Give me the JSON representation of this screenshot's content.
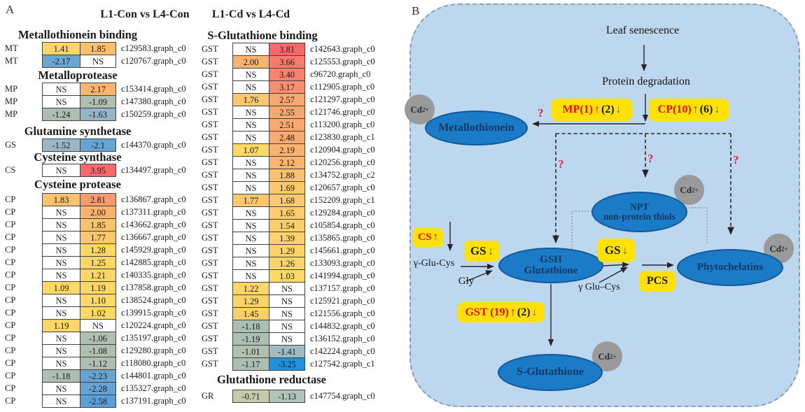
{
  "panel_a": {
    "label": "A",
    "headers": {
      "con": "L1-Con vs L4-Con",
      "cd": "L1-Cd vs L4-Cd"
    },
    "left_sections": [
      {
        "title": "Metallothionein binding",
        "rows": [
          {
            "g": "MT",
            "v1": "1.41",
            "b1": "#FCD666",
            "v2": "1.85",
            "b2": "#FAC06D",
            "id": "c129583.graph_c0"
          },
          {
            "g": "MT",
            "v1": "-2.17",
            "b1": "#6BA5D1",
            "v2": "NS",
            "b2": "#FFFFFF",
            "id": "c120767.graph_c0"
          }
        ]
      },
      {
        "title": "Metalloprotease",
        "rows": [
          {
            "g": "MP",
            "v1": "NS",
            "b1": "#FFFFFF",
            "v2": "2.17",
            "b2": "#FAB46E",
            "id": "c153414.graph_c0"
          },
          {
            "g": "MP",
            "v1": "NS",
            "b1": "#FFFFFF",
            "v2": "-1.09",
            "b2": "#AFBFB0",
            "id": "c147380.graph_c0"
          },
          {
            "g": "MP",
            "v1": "-1.24",
            "b1": "#ACBEB4",
            "v2": "-1.63",
            "b2": "#95B4C8",
            "id": "c150259.graph_c0"
          }
        ]
      },
      {
        "title": "Glutamine synthetase",
        "rows": [
          {
            "g": "GS",
            "v1": "-1.52",
            "b1": "#9BB7C6",
            "v2": "-2.1",
            "b2": "#68A4D2",
            "id": "c144370.graph_c0"
          }
        ]
      },
      {
        "title": "Cysteine synthase",
        "rows": [
          {
            "g": "CS",
            "v1": "NS",
            "b1": "#FFFFFF",
            "v2": "3.95",
            "b2": "#F8696B",
            "id": "c134497.graph_c0"
          }
        ]
      },
      {
        "title": "Cysteine protease",
        "rows": [
          {
            "g": "CP",
            "v1": "1.83",
            "b1": "#FBC36D",
            "v2": "2.81",
            "b2": "#F89C6F",
            "id": "c136867.graph_c0"
          },
          {
            "g": "CP",
            "v1": "NS",
            "b1": "#FFFFFF",
            "v2": "2.00",
            "b2": "#FAB46E",
            "id": "c137311.graph_c0"
          },
          {
            "g": "CP",
            "v1": "NS",
            "b1": "#FFFFFF",
            "v2": "1.85",
            "b2": "#FBC36D",
            "id": "c143662.graph_c0"
          },
          {
            "g": "CP",
            "v1": "NS",
            "b1": "#FFFFFF",
            "v2": "1.77",
            "b2": "#FBC86D",
            "id": "c136667.graph_c0"
          },
          {
            "g": "CP",
            "v1": "NS",
            "b1": "#FFFFFF",
            "v2": "1.28",
            "b2": "#FCD666",
            "id": "c145929.graph_c0"
          },
          {
            "g": "CP",
            "v1": "NS",
            "b1": "#FFFFFF",
            "v2": "1.25",
            "b2": "#FCD666",
            "id": "c142885.graph_c0"
          },
          {
            "g": "CP",
            "v1": "NS",
            "b1": "#FFFFFF",
            "v2": "1.21",
            "b2": "#FCD666",
            "id": "c140335.graph_c0"
          },
          {
            "g": "CP",
            "v1": "1.09",
            "b1": "#FDD965",
            "v2": "1.19",
            "b2": "#FCD666",
            "id": "c137858.graph_c0"
          },
          {
            "g": "CP",
            "v1": "NS",
            "b1": "#FFFFFF",
            "v2": "1.10",
            "b2": "#FDD965",
            "id": "c138524.graph_c0"
          },
          {
            "g": "CP",
            "v1": "NS",
            "b1": "#FFFFFF",
            "v2": "1.02",
            "b2": "#FDD965",
            "id": "c139915.graph_c0"
          },
          {
            "g": "CP",
            "v1": "1.19",
            "b1": "#FCD666",
            "v2": "NS",
            "b2": "#FFFFFF",
            "id": "c120224.graph_c0"
          },
          {
            "g": "CP",
            "v1": "NS",
            "b1": "#FFFFFF",
            "v2": "-1.06",
            "b2": "#AFBFB0",
            "id": "c135197.graph_c0"
          },
          {
            "g": "CP",
            "v1": "NS",
            "b1": "#FFFFFF",
            "v2": "-1.08",
            "b2": "#AFBFB0",
            "id": "c129280.graph_c0"
          },
          {
            "g": "CP",
            "v1": "NS",
            "b1": "#FFFFFF",
            "v2": "-1.12",
            "b2": "#AEBFB1",
            "id": "c118080.graph_c0"
          },
          {
            "g": "CP",
            "v1": "-1.18",
            "b1": "#ADBEB2",
            "v2": "-2.23",
            "b2": "#68A4D2",
            "id": "c144801.graph_c0"
          },
          {
            "g": "CP",
            "v1": "NS",
            "b1": "#FFFFFF",
            "v2": "-2.28",
            "b2": "#66A3D3",
            "id": "c135327.graph_c0"
          },
          {
            "g": "CP",
            "v1": "NS",
            "b1": "#FFFFFF",
            "v2": "-2.58",
            "b2": "#5C9ED7",
            "id": "c137191.graph_c0"
          }
        ]
      }
    ],
    "right_sections": [
      {
        "title": "S-Glutathione binding",
        "rows": [
          {
            "g": "GST",
            "v1": "NS",
            "b1": "#FFFFFF",
            "v2": "3.81",
            "b2": "#F8696B",
            "id": "c142643.graph_c0"
          },
          {
            "g": "GST",
            "v1": "2.00",
            "b1": "#FAB46E",
            "v2": "3.66",
            "b2": "#F87B6D",
            "id": "c125553.graph_c0"
          },
          {
            "g": "GST",
            "v1": "NS",
            "b1": "#FFFFFF",
            "v2": "3.40",
            "b2": "#F8826E",
            "id": "c96720.graph_c0"
          },
          {
            "g": "GST",
            "v1": "NS",
            "b1": "#FFFFFF",
            "v2": "3.17",
            "b2": "#F88D70",
            "id": "c112905.graph_c0"
          },
          {
            "g": "GST",
            "v1": "1.76",
            "b1": "#FBC86D",
            "v2": "2.57",
            "b2": "#F9A771",
            "id": "c121297.graph_c0"
          },
          {
            "g": "GST",
            "v1": "NS",
            "b1": "#FFFFFF",
            "v2": "2.55",
            "b2": "#F9A771",
            "id": "c121746.graph_c0"
          },
          {
            "g": "GST",
            "v1": "NS",
            "b1": "#FFFFFF",
            "v2": "2.51",
            "b2": "#F9A871",
            "id": "c113200.graph_c0"
          },
          {
            "g": "GST",
            "v1": "NS",
            "b1": "#FFFFFF",
            "v2": "2.48",
            "b2": "#F9A971",
            "id": "c123830.graph_c1"
          },
          {
            "g": "GST",
            "v1": "1.07",
            "b1": "#FDD965",
            "v2": "2.19",
            "b2": "#FAB36F",
            "id": "c120904.graph_c0"
          },
          {
            "g": "GST",
            "v1": "NS",
            "b1": "#FFFFFF",
            "v2": "2.12",
            "b2": "#FAB46E",
            "id": "c120256.graph_c0"
          },
          {
            "g": "GST",
            "v1": "NS",
            "b1": "#FFFFFF",
            "v2": "1.88",
            "b2": "#FBC26D",
            "id": "c134752.graph_c2"
          },
          {
            "g": "GST",
            "v1": "NS",
            "b1": "#FFFFFF",
            "v2": "1.69",
            "b2": "#FBC96C",
            "id": "c120657.graph_c0"
          },
          {
            "g": "GST",
            "v1": "1.77",
            "b1": "#FBC86D",
            "v2": "1.68",
            "b2": "#FBCA6C",
            "id": "c152209.graph_c1"
          },
          {
            "g": "GST",
            "v1": "NS",
            "b1": "#FFFFFF",
            "v2": "1.65",
            "b2": "#FBCB6C",
            "id": "c129284.graph_c0"
          },
          {
            "g": "GST",
            "v1": "NS",
            "b1": "#FFFFFF",
            "v2": "1.54",
            "b2": "#FCCE6B",
            "id": "c105854.graph_c0"
          },
          {
            "g": "GST",
            "v1": "NS",
            "b1": "#FFFFFF",
            "v2": "1.39",
            "b2": "#FCD26A",
            "id": "c135865.graph_c0"
          },
          {
            "g": "GST",
            "v1": "NS",
            "b1": "#FFFFFF",
            "v2": "1.29",
            "b2": "#FCD466",
            "id": "c145661.graph_c0"
          },
          {
            "g": "GST",
            "v1": "NS",
            "b1": "#FFFFFF",
            "v2": "1.26",
            "b2": "#FCD566",
            "id": "c133093.graph_c0"
          },
          {
            "g": "GST",
            "v1": "NS",
            "b1": "#FFFFFF",
            "v2": "1.03",
            "b2": "#FDD965",
            "id": "c141994.graph_c0"
          },
          {
            "g": "GST",
            "v1": "1.22",
            "b1": "#FCD666",
            "v2": "NS",
            "b2": "#FFFFFF",
            "id": "c137157.graph_c0"
          },
          {
            "g": "GST",
            "v1": "1.29",
            "b1": "#FCD466",
            "v2": "NS",
            "b2": "#FFFFFF",
            "id": "c125921.graph_c0"
          },
          {
            "g": "GST",
            "v1": "1.45",
            "b1": "#FCD069",
            "v2": "NS",
            "b2": "#FFFFFF",
            "id": "c121556.graph_c0"
          },
          {
            "g": "GST",
            "v1": "-1.18",
            "b1": "#ADBEB2",
            "v2": "NS",
            "b2": "#FFFFFF",
            "id": "c144832.graph_c0"
          },
          {
            "g": "GST",
            "v1": "-1.19",
            "b1": "#ADBEB2",
            "v2": "NS",
            "b2": "#FFFFFF",
            "id": "c136152.graph_c0"
          },
          {
            "g": "GST",
            "v1": "-1.01",
            "b1": "#B1C0B0",
            "v2": "-1.41",
            "b2": "#9FB9C5",
            "id": "c142224.graph_c0"
          },
          {
            "g": "GST",
            "v1": "-1.17",
            "b1": "#ADBEB2",
            "v2": "-3.25",
            "b2": "#2191DD",
            "id": "c127542.graph_c1"
          }
        ]
      },
      {
        "title": "Glutathione reductase",
        "rows": [
          {
            "g": "GR",
            "v1": "-0.71",
            "b1": "#C6CCAA",
            "v2": "-1.13",
            "b2": "#B2C3BC",
            "id": "c147754.graph_c0"
          }
        ]
      }
    ]
  },
  "panel_b": {
    "label": "B",
    "colors": {
      "background": "#BCD7EE",
      "ellipse": "#1C7BC7",
      "highlight": "#FFE008",
      "cd_circle": "#9A9A9A",
      "up_regulated": "#E8100C",
      "question": "#E4234F"
    },
    "texts": {
      "leaf_senescence": "Leaf senescence",
      "protein_degradation": "Protein degradation",
      "gamma_glu_cys_left": "γ-Glu-Cys",
      "gly": "Gly",
      "gamma_glu_cys_right": "γ Glu–Cys",
      "question": "?"
    },
    "cd_ion": {
      "base": "Cd",
      "sup": "2+"
    },
    "ellipses": {
      "metallothionein": [
        "Metallothionein"
      ],
      "npt": [
        "NPT",
        "non-protein thiols"
      ],
      "gsh": [
        "GSH",
        "Glutathione"
      ],
      "phytochelatins": [
        "Phytochelatins"
      ],
      "s_glutathione": [
        "S-Glutathione"
      ]
    },
    "boxes": {
      "mp": [
        {
          "text": "MP(1)",
          "color": "red"
        },
        {
          "text": "↑",
          "color": "red"
        },
        {
          "text": "(2)",
          "color": "black"
        },
        {
          "text": "↓",
          "color": "olive"
        }
      ],
      "cp": [
        {
          "text": "CP(10)",
          "color": "red"
        },
        {
          "text": "↑",
          "color": "red"
        },
        {
          "text": "(6)",
          "color": "black"
        },
        {
          "text": "↓",
          "color": "olive"
        }
      ],
      "cs": [
        {
          "text": "CS",
          "color": "red"
        },
        {
          "text": "↑",
          "color": "red"
        }
      ],
      "gs1": [
        {
          "text": "GS",
          "color": "black"
        },
        {
          "text": "↓",
          "color": "olive"
        }
      ],
      "gs2": [
        {
          "text": "GS",
          "color": "black"
        },
        {
          "text": "↓",
          "color": "olive"
        }
      ],
      "gst": [
        {
          "text": "GST (19)",
          "color": "red"
        },
        {
          "text": "↑",
          "color": "red"
        },
        {
          "text": "(2)",
          "color": "black"
        },
        {
          "text": "↓",
          "color": "olive"
        }
      ],
      "pcs": [
        {
          "text": "PCS",
          "color": "black"
        }
      ]
    }
  }
}
